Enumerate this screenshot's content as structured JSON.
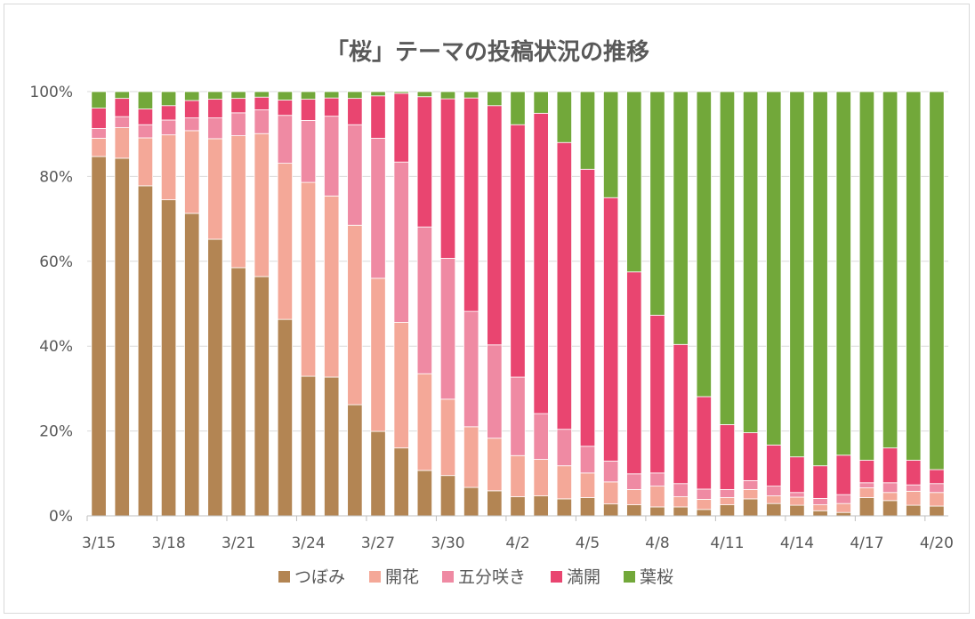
{
  "chart_data": {
    "type": "bar",
    "stacked": true,
    "normalized": true,
    "title": "「桜」テーマの投稿状況の推移",
    "xlabel": "",
    "ylabel": "",
    "ylim": [
      0,
      100
    ],
    "yticks": [
      "0%",
      "20%",
      "40%",
      "60%",
      "80%",
      "100%"
    ],
    "grid": true,
    "legend_position": "bottom",
    "categories": [
      "3/15",
      "3/16",
      "3/17",
      "3/18",
      "3/19",
      "3/20",
      "3/21",
      "3/22",
      "3/23",
      "3/24",
      "3/25",
      "3/26",
      "3/27",
      "3/28",
      "3/29",
      "3/30",
      "3/31",
      "4/1",
      "4/2",
      "4/3",
      "4/4",
      "4/5",
      "4/6",
      "4/7",
      "4/8",
      "4/9",
      "4/10",
      "4/11",
      "4/12",
      "4/13",
      "4/14",
      "4/15",
      "4/16",
      "4/17",
      "4/18",
      "4/19",
      "4/20"
    ],
    "tick_labels": [
      "3/15",
      "3/18",
      "3/21",
      "3/24",
      "3/27",
      "3/30",
      "4/2",
      "4/5",
      "4/8",
      "4/11",
      "4/14",
      "4/17",
      "4/20"
    ],
    "series": [
      {
        "name": "つぼみ",
        "color": "#b38553",
        "values": [
          84.7,
          84.3,
          77.8,
          74.5,
          71.3,
          65.2,
          58.5,
          56.4,
          46.3,
          32.9,
          32.7,
          26.2,
          19.9,
          16.0,
          10.7,
          9.5,
          6.7,
          5.9,
          4.5,
          4.7,
          4.0,
          4.3,
          2.8,
          2.6,
          2.1,
          2.1,
          1.5,
          2.6,
          4.0,
          2.9,
          2.5,
          1.2,
          0.8,
          4.3,
          3.6,
          2.5,
          2.3
        ]
      },
      {
        "name": "開花",
        "color": "#f4a898",
        "values": [
          4.3,
          7.2,
          11.3,
          15.3,
          19.5,
          23.7,
          31.1,
          33.7,
          36.8,
          45.7,
          42.7,
          42.3,
          36.1,
          29.6,
          22.8,
          18.0,
          14.3,
          12.4,
          9.7,
          8.6,
          7.8,
          5.8,
          5.2,
          3.6,
          4.9,
          2.4,
          2.4,
          1.7,
          2.2,
          1.8,
          1.9,
          1.4,
          2.1,
          2.3,
          1.9,
          3.3,
          3.2
        ]
      },
      {
        "name": "五分咲き",
        "color": "#ef8aa3",
        "values": [
          2.3,
          2.6,
          3.1,
          3.5,
          3.0,
          4.9,
          5.4,
          5.6,
          11.3,
          14.6,
          18.8,
          23.7,
          33.0,
          37.8,
          34.6,
          33.2,
          27.2,
          22.0,
          18.5,
          10.8,
          8.6,
          6.3,
          4.9,
          3.7,
          3.1,
          3.1,
          2.4,
          1.9,
          2.1,
          2.3,
          1.1,
          1.5,
          2.1,
          1.2,
          2.3,
          1.5,
          2.1
        ]
      },
      {
        "name": "満開",
        "color": "#e94570",
        "values": [
          4.8,
          4.3,
          3.7,
          3.4,
          4.1,
          4.4,
          3.4,
          3.0,
          3.6,
          5.0,
          4.3,
          6.2,
          10.0,
          16.2,
          30.7,
          37.6,
          50.3,
          56.4,
          59.5,
          70.8,
          67.6,
          65.3,
          62.1,
          47.6,
          37.2,
          32.8,
          21.8,
          15.3,
          11.3,
          9.7,
          8.4,
          7.7,
          9.3,
          5.3,
          8.2,
          5.8,
          3.3
        ]
      },
      {
        "name": "葉桜",
        "color": "#72a83a",
        "values": [
          3.9,
          1.6,
          4.1,
          3.3,
          2.1,
          1.8,
          1.6,
          1.3,
          2.0,
          1.8,
          1.5,
          1.6,
          1.0,
          0.4,
          1.2,
          1.7,
          1.5,
          3.3,
          7.8,
          5.1,
          12.0,
          18.3,
          25.0,
          42.5,
          52.7,
          59.6,
          71.9,
          78.5,
          80.4,
          83.3,
          86.1,
          88.2,
          85.7,
          86.9,
          84.0,
          86.9,
          89.1
        ]
      }
    ]
  }
}
